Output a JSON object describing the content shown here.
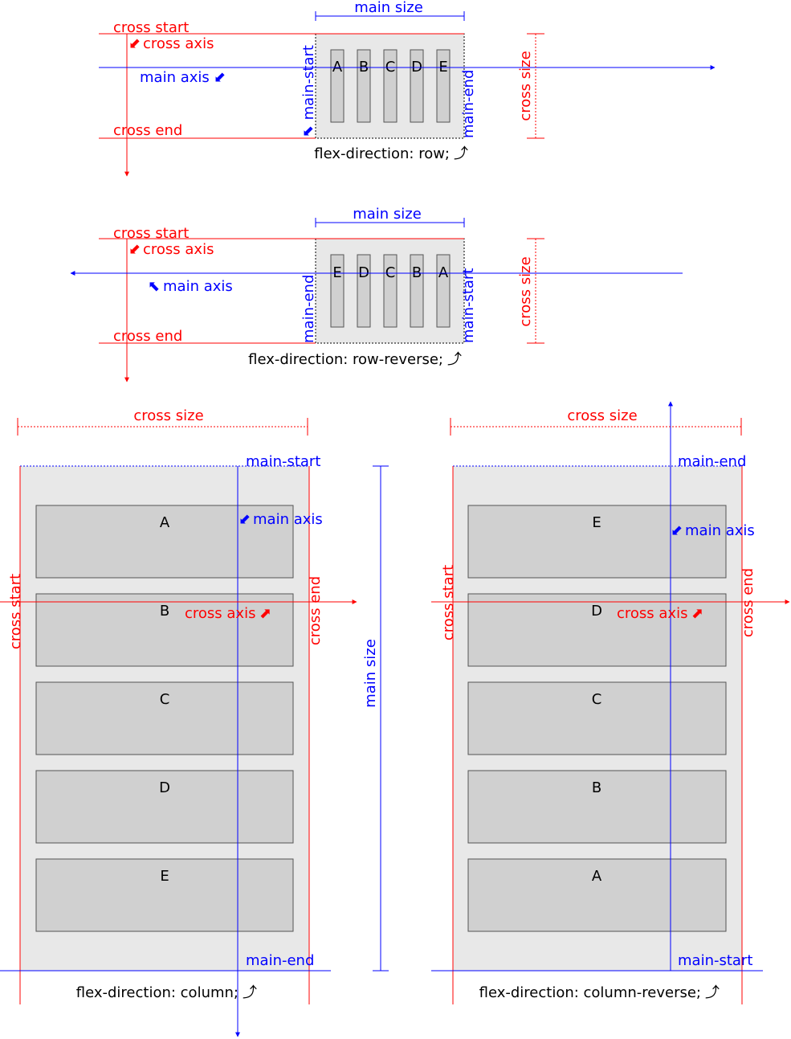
{
  "colors": {
    "main": "#0000ff",
    "cross": "#ff0000",
    "container_fill": "#e8e8e8",
    "item_fill": "#d0d0d0",
    "item_stroke": "#555555",
    "text": "#000000"
  },
  "labels": {
    "main_size": "main size",
    "cross_size": "cross size",
    "main_axis": "main axis",
    "cross_axis": "cross axis",
    "main_start": "main-start",
    "main_end": "main-end",
    "cross_start": "cross start",
    "cross_end": "cross end"
  },
  "diagrams": [
    {
      "caption": "flex-direction: row;",
      "items": [
        "A",
        "B",
        "C",
        "D",
        "E"
      ]
    },
    {
      "caption": "flex-direction: row-reverse;",
      "items": [
        "E",
        "D",
        "C",
        "B",
        "A"
      ]
    },
    {
      "caption": "flex-direction: column;",
      "items": [
        "A",
        "B",
        "C",
        "D",
        "E"
      ]
    },
    {
      "caption": "flex-direction: column-reverse;",
      "items": [
        "E",
        "D",
        "C",
        "B",
        "A"
      ]
    }
  ],
  "glyphs": {
    "small_arrow_down_left": "⬋",
    "small_arrow_up_left": "⬉",
    "small_arrow_up_right": "⬈",
    "curved_arrow": "⤴"
  }
}
